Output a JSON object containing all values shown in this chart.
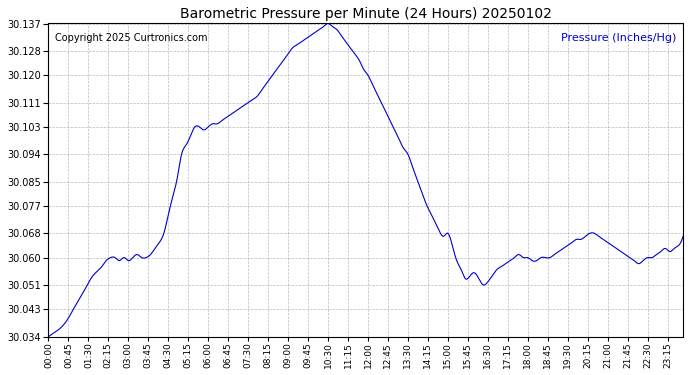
{
  "title": "Barometric Pressure per Minute (24 Hours) 20250102",
  "copyright": "Copyright 2025 Curtronics.com",
  "ylabel": "Pressure (Inches/Hg)",
  "ylabel_color": "#0000cc",
  "line_color": "#0000cc",
  "background_color": "#ffffff",
  "grid_color": "#aaaaaa",
  "ylim": [
    30.034,
    30.137
  ],
  "yticks": [
    30.034,
    30.043,
    30.051,
    30.06,
    30.068,
    30.077,
    30.085,
    30.094,
    30.103,
    30.111,
    30.12,
    30.128,
    30.137
  ],
  "xtick_labels": [
    "00:00",
    "00:45",
    "01:30",
    "02:15",
    "03:00",
    "03:45",
    "04:30",
    "05:15",
    "06:00",
    "06:45",
    "07:30",
    "08:15",
    "09:00",
    "09:45",
    "10:30",
    "11:15",
    "12:00",
    "12:45",
    "13:30",
    "14:15",
    "15:00",
    "15:45",
    "16:30",
    "17:15",
    "18:00",
    "18:45",
    "19:30",
    "20:15",
    "21:00",
    "21:45",
    "22:30",
    "23:15"
  ],
  "key_times": [
    0,
    45,
    90,
    135,
    180,
    225,
    270,
    315,
    360,
    405,
    450,
    495,
    540,
    585,
    630,
    675,
    720,
    765,
    810,
    855,
    900,
    945,
    990,
    1035,
    1080,
    1125,
    1170,
    1215,
    1260,
    1305,
    1350,
    1395
  ],
  "key_values": [
    30.034,
    30.038,
    30.043,
    30.056,
    30.06,
    30.06,
    30.058,
    30.06,
    30.068,
    30.07,
    30.073,
    30.094,
    30.103,
    30.103,
    30.111,
    30.12,
    30.128,
    30.134,
    30.137,
    30.133,
    30.12,
    30.094,
    30.077,
    30.068,
    30.06,
    30.057,
    30.051,
    30.054,
    30.058,
    30.06,
    30.063,
    30.06,
    30.062,
    30.068,
    30.065,
    30.06,
    30.06,
    30.062,
    30.058,
    30.057,
    30.06,
    30.062,
    30.06,
    30.06,
    30.058,
    30.057,
    30.055,
    30.06,
    30.062,
    30.06,
    30.065,
    30.068,
    30.071
  ]
}
